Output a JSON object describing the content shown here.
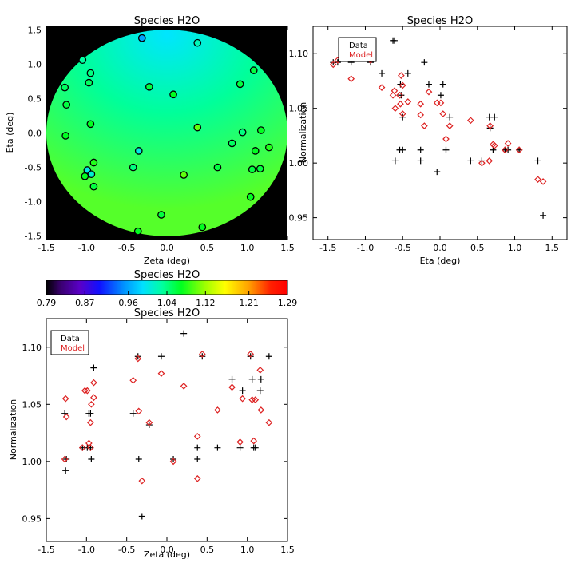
{
  "chart_data": [
    {
      "type": "scatter",
      "subtype": "map",
      "title": "Species H2O",
      "xlabel": "Zeta (deg)",
      "ylabel": "Eta (deg)",
      "xlim": [
        -1.5,
        1.5
      ],
      "ylim": [
        -1.55,
        1.55
      ],
      "xticks": [
        "-1.5",
        "-1.0",
        "-0.5",
        "0.0",
        "0.5",
        "1.0",
        "1.5"
      ],
      "yticks": [
        "-1.5",
        "-1.0",
        "-0.5",
        "0.0",
        "0.5",
        "1.0",
        "1.5"
      ],
      "background": "#000000",
      "disk_radius_deg": 1.5,
      "points": [
        {
          "zeta": -0.31,
          "eta": 1.38,
          "value": 0.96
        },
        {
          "zeta": 0.38,
          "eta": 1.31,
          "value": 1.02
        },
        {
          "zeta": -1.05,
          "eta": 1.06,
          "value": 1.03
        },
        {
          "zeta": -0.95,
          "eta": 0.87,
          "value": 1.04
        },
        {
          "zeta": 1.08,
          "eta": 0.91,
          "value": 1.06
        },
        {
          "zeta": -1.27,
          "eta": 0.66,
          "value": 1.05
        },
        {
          "zeta": -0.97,
          "eta": 0.73,
          "value": 1.05
        },
        {
          "zeta": -0.22,
          "eta": 0.67,
          "value": 1.06
        },
        {
          "zeta": 0.91,
          "eta": 0.71,
          "value": 1.06
        },
        {
          "zeta": 0.08,
          "eta": 0.56,
          "value": 1.07
        },
        {
          "zeta": -1.25,
          "eta": 0.41,
          "value": 1.06
        },
        {
          "zeta": -0.95,
          "eta": 0.13,
          "value": 1.07
        },
        {
          "zeta": 0.38,
          "eta": 0.08,
          "value": 1.1
        },
        {
          "zeta": 1.17,
          "eta": 0.04,
          "value": 1.07
        },
        {
          "zeta": 0.94,
          "eta": 0.01,
          "value": 1.04
        },
        {
          "zeta": -1.26,
          "eta": -0.04,
          "value": 1.07
        },
        {
          "zeta": 0.81,
          "eta": -0.15,
          "value": 1.05
        },
        {
          "zeta": 1.27,
          "eta": -0.21,
          "value": 1.08
        },
        {
          "zeta": -0.35,
          "eta": -0.26,
          "value": 1.0
        },
        {
          "zeta": 1.1,
          "eta": -0.26,
          "value": 1.07
        },
        {
          "zeta": -0.91,
          "eta": -0.43,
          "value": 1.08
        },
        {
          "zeta": -0.42,
          "eta": -0.5,
          "value": 1.04
        },
        {
          "zeta": 0.63,
          "eta": -0.5,
          "value": 1.06
        },
        {
          "zeta": 1.16,
          "eta": -0.52,
          "value": 1.06
        },
        {
          "zeta": 1.06,
          "eta": -0.53,
          "value": 1.06
        },
        {
          "zeta": -0.99,
          "eta": -0.54,
          "value": 1.0
        },
        {
          "zeta": -0.94,
          "eta": -0.6,
          "value": 1.01
        },
        {
          "zeta": 0.21,
          "eta": -0.61,
          "value": 1.1
        },
        {
          "zeta": -1.02,
          "eta": -0.63,
          "value": 1.07
        },
        {
          "zeta": -0.91,
          "eta": -0.78,
          "value": 1.06
        },
        {
          "zeta": 1.04,
          "eta": -0.93,
          "value": 1.07
        },
        {
          "zeta": -0.07,
          "eta": -1.19,
          "value": 1.06
        },
        {
          "zeta": 0.44,
          "eta": -1.37,
          "value": 1.07
        },
        {
          "zeta": -0.36,
          "eta": -1.43,
          "value": 1.07
        }
      ]
    },
    {
      "type": "scatter",
      "title": "Species H2O",
      "xlabel": "Eta (deg)",
      "ylabel": "Normalization",
      "xlim": [
        -1.7,
        1.7
      ],
      "ylim": [
        0.93,
        1.125
      ],
      "xticks": [
        "-1.5",
        "-1.0",
        "-0.5",
        "0.0",
        "0.5",
        "1.0",
        "1.5"
      ],
      "yticks": [
        "0.95",
        "1.00",
        "1.05",
        "1.10"
      ],
      "legend": {
        "placement": "top-left",
        "entries": [
          "Data",
          "Model"
        ]
      },
      "series": [
        {
          "name": "Data",
          "marker": "plus",
          "color": "#000000",
          "x": [
            1.38,
            1.31,
            1.06,
            0.87,
            0.91,
            0.66,
            0.73,
            0.67,
            0.71,
            0.56,
            0.41,
            0.13,
            0.08,
            0.04,
            0.01,
            -0.04,
            -0.15,
            -0.21,
            -0.26,
            -0.26,
            -0.43,
            -0.5,
            -0.5,
            -0.52,
            -0.53,
            -0.54,
            -0.6,
            -0.61,
            -0.63,
            -0.78,
            -0.93,
            -1.19,
            -1.37,
            -1.43
          ],
          "y": [
            0.952,
            1.002,
            1.012,
            1.012,
            1.012,
            1.042,
            1.042,
            1.032,
            1.012,
            1.002,
            1.002,
            1.042,
            1.012,
            1.072,
            1.062,
            0.992,
            1.072,
            1.092,
            1.002,
            1.012,
            1.082,
            1.042,
            1.012,
            1.062,
            1.072,
            1.012,
            1.002,
            1.112,
            1.112,
            1.082,
            1.092,
            1.092,
            1.092,
            1.092
          ]
        },
        {
          "name": "Model",
          "marker": "diamond",
          "color": "#dd2222",
          "x": [
            1.38,
            1.31,
            1.06,
            0.87,
            0.91,
            0.66,
            0.73,
            0.67,
            0.71,
            0.56,
            0.41,
            0.13,
            0.08,
            0.04,
            0.01,
            -0.04,
            -0.15,
            -0.21,
            -0.26,
            -0.26,
            -0.43,
            -0.5,
            -0.5,
            -0.52,
            -0.53,
            -0.54,
            -0.6,
            -0.61,
            -0.63,
            -0.78,
            -0.93,
            -1.19,
            -1.37,
            -1.43
          ],
          "y": [
            0.983,
            0.985,
            1.012,
            1.012,
            1.018,
            1.002,
            1.016,
            1.034,
            1.017,
            1.0,
            1.039,
            1.034,
            1.022,
            1.045,
            1.055,
            1.055,
            1.065,
            1.034,
            1.044,
            1.054,
            1.056,
            1.071,
            1.045,
            1.08,
            1.054,
            1.062,
            1.05,
            1.066,
            1.062,
            1.069,
            1.094,
            1.077,
            1.094,
            1.09
          ]
        }
      ]
    },
    {
      "type": "scatter",
      "title": "Species H2O",
      "xlabel": "Zeta (deg)",
      "ylabel": "Normalization",
      "xlim": [
        -1.5,
        1.5
      ],
      "ylim": [
        0.93,
        1.125
      ],
      "xticks": [
        "-1.5",
        "-1.0",
        "-0.5",
        "0.0",
        "0.5",
        "1.0",
        "1.5"
      ],
      "yticks": [
        "0.95",
        "1.00",
        "1.05",
        "1.10"
      ],
      "legend": {
        "placement": "top-left",
        "entries": [
          "Data",
          "Model"
        ]
      },
      "series": [
        {
          "name": "Data",
          "marker": "plus",
          "color": "#000000",
          "x": [
            -0.31,
            0.38,
            -1.05,
            -0.95,
            1.08,
            -1.27,
            -0.97,
            -0.22,
            0.91,
            0.08,
            -1.25,
            -0.95,
            0.38,
            1.17,
            0.94,
            -1.26,
            0.81,
            1.27,
            -0.35,
            1.1,
            -0.91,
            -0.42,
            0.63,
            1.16,
            1.06,
            -0.99,
            -0.94,
            0.21,
            -1.02,
            -0.91,
            1.04,
            -0.07,
            0.44,
            -0.36
          ],
          "y": [
            0.952,
            1.002,
            1.012,
            1.012,
            1.012,
            1.042,
            1.042,
            1.032,
            1.012,
            1.002,
            1.002,
            1.042,
            1.012,
            1.072,
            1.062,
            0.992,
            1.072,
            1.092,
            1.002,
            1.012,
            1.082,
            1.042,
            1.012,
            1.062,
            1.072,
            1.012,
            1.002,
            1.112,
            1.112,
            1.082,
            1.092,
            1.092,
            1.092,
            1.092
          ]
        },
        {
          "name": "Model",
          "marker": "diamond",
          "color": "#dd2222",
          "x": [
            -0.31,
            0.38,
            -1.05,
            -0.95,
            1.08,
            -1.27,
            -0.97,
            -0.22,
            0.91,
            0.08,
            -1.25,
            -0.95,
            0.38,
            1.17,
            0.94,
            -1.26,
            0.81,
            1.27,
            -0.35,
            1.1,
            -0.91,
            -0.42,
            0.63,
            1.16,
            1.06,
            -0.99,
            -0.94,
            0.21,
            -1.02,
            -0.91,
            1.04,
            -0.07,
            0.44,
            -0.36
          ],
          "y": [
            0.983,
            0.985,
            1.012,
            1.012,
            1.018,
            1.002,
            1.016,
            1.034,
            1.017,
            1.0,
            1.039,
            1.034,
            1.022,
            1.045,
            1.055,
            1.055,
            1.065,
            1.034,
            1.044,
            1.054,
            1.056,
            1.071,
            1.045,
            1.08,
            1.054,
            1.062,
            1.05,
            1.066,
            1.062,
            1.069,
            1.094,
            1.077,
            1.094,
            1.09
          ]
        }
      ]
    },
    {
      "type": "heatmap",
      "subtype": "colorbar",
      "title": "Species H2O",
      "colormap": "rainbow",
      "range": [
        0.79,
        1.29
      ],
      "tick_values": [
        0.79,
        0.87,
        0.96,
        1.04,
        1.12,
        1.21,
        1.29
      ],
      "ticks": [
        "0.79",
        "0.87",
        "0.96",
        "1.04",
        "1.12",
        "1.21",
        "1.29"
      ]
    }
  ]
}
